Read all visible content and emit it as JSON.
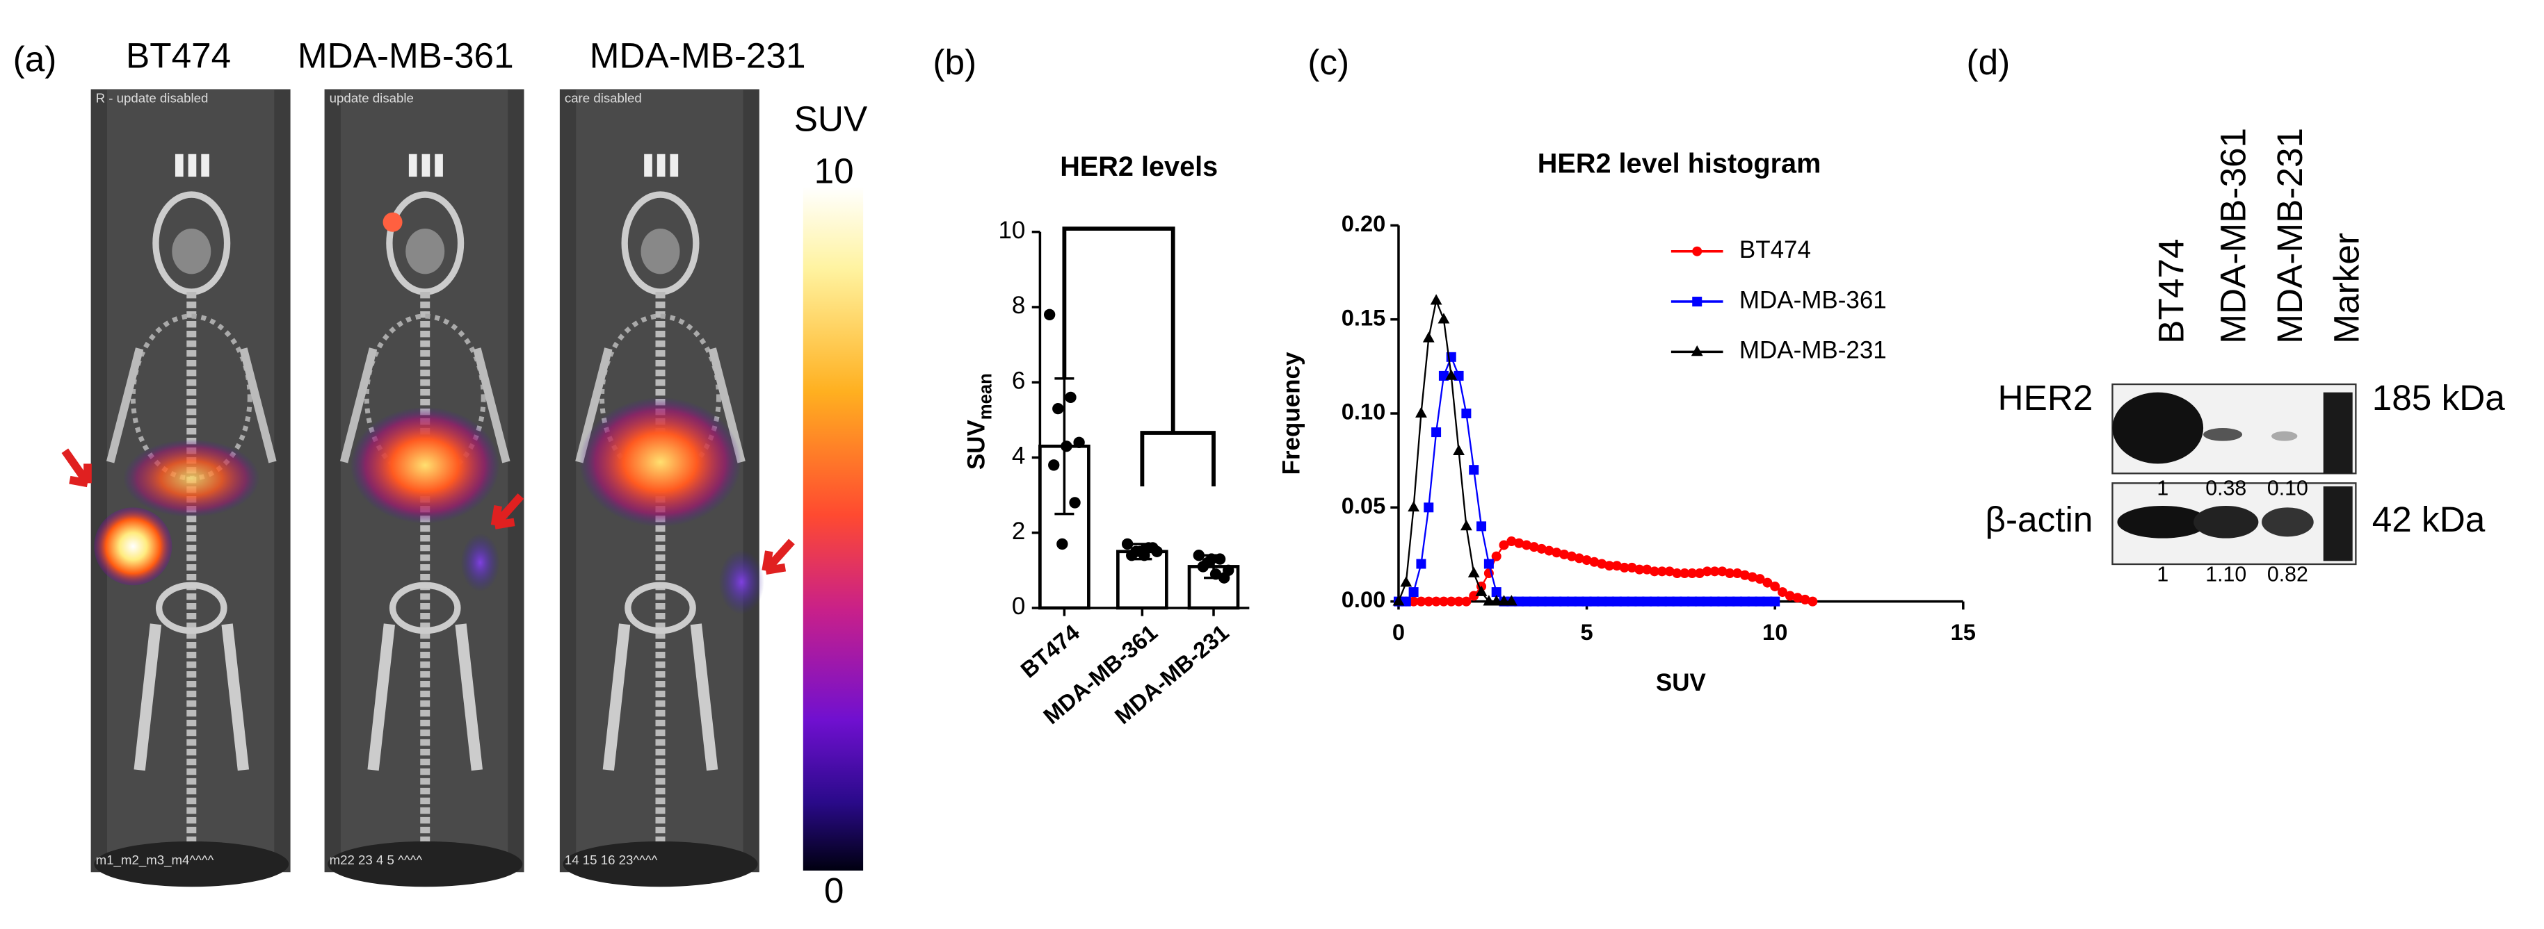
{
  "panel_a": {
    "label": "(a)",
    "columns": [
      "BT474",
      "MDA-MB-361",
      "MDA-MB-231"
    ],
    "overlays": [
      "R - update disabled",
      "update disable",
      "care disabled"
    ],
    "footers": [
      "m1_m2_m3_m4^^^^",
      "m22 23 4 5 ^^^^",
      "14 15 16 23^^^^"
    ],
    "colorbar": {
      "label": "SUV",
      "lim": [
        0,
        10
      ],
      "ticks": [
        0,
        10
      ]
    }
  },
  "panel_b": {
    "label": "(b)"
  },
  "panel_c": {
    "label": "(c)"
  },
  "panel_d": {
    "label": "(d)",
    "lanes": [
      "BT474",
      "MDA-MB-361",
      "MDA-MB-231",
      "Marker"
    ],
    "rows": [
      {
        "name": "HER2",
        "size": "185 kDa",
        "quant": [
          "1",
          "0.38",
          "0.10"
        ]
      },
      {
        "name": "β-actin",
        "size": "42 kDa",
        "quant": [
          "1",
          "1.10",
          "0.82"
        ]
      }
    ]
  },
  "chart_data": [
    {
      "type": "bar",
      "title": "HER2 levels",
      "y_label": "SUV",
      "y_label_sub": "mean",
      "categories": [
        "BT474",
        "MDA-MB-361",
        "MDA-MB-231"
      ],
      "values": [
        4.3,
        1.5,
        1.1
      ],
      "errors": [
        1.8,
        0.2,
        0.3
      ],
      "points": [
        [
          7.8,
          5.6,
          5.3,
          4.4,
          4.3,
          3.8,
          2.8,
          1.7
        ],
        [
          1.7,
          1.6,
          1.5,
          1.5,
          1.4,
          1.4,
          1.6,
          1.5
        ],
        [
          1.4,
          1.3,
          1.2,
          1.0,
          0.9,
          1.1,
          0.8,
          1.3
        ]
      ],
      "color": "#ffffff",
      "ylim": [
        0,
        10
      ],
      "yticks": [
        0,
        2,
        4,
        6,
        8,
        10
      ]
    },
    {
      "type": "line",
      "title": "HER2 level histogram",
      "x_label": "SUV",
      "y_label": "Frequency",
      "xlim": [
        0,
        15
      ],
      "xticks": [
        0,
        5,
        10,
        15
      ],
      "ylim": [
        0,
        0.2
      ],
      "yticks": [
        {
          "value": 0,
          "label": "0.00"
        },
        {
          "value": 0.05,
          "label": "0.05"
        },
        {
          "value": 0.1,
          "label": "0.10"
        },
        {
          "value": 0.15,
          "label": "0.15"
        },
        {
          "value": 0.2,
          "label": "0.20"
        }
      ],
      "x": [
        0,
        0.2,
        0.4,
        0.6,
        0.8,
        1,
        1.2,
        1.4,
        1.6,
        1.8,
        2,
        2.2,
        2.4,
        2.6,
        2.8,
        3,
        3.2,
        3.4,
        3.6,
        3.8,
        4,
        4.2,
        4.4,
        4.6,
        4.8,
        5,
        5.2,
        5.4,
        5.6,
        5.8,
        6,
        6.2,
        6.4,
        6.6,
        6.8,
        7,
        7.2,
        7.4,
        7.6,
        7.8,
        8,
        8.2,
        8.4,
        8.6,
        8.8,
        9,
        9.2,
        9.4,
        9.6,
        9.8,
        10,
        10.2,
        10.4,
        10.6,
        10.8,
        11
      ],
      "series": [
        {
          "name": "BT474",
          "color": "#ff0000",
          "marker": "circle",
          "values": [
            0,
            0,
            0,
            0,
            0,
            0,
            0,
            0,
            0,
            0,
            0.003,
            0.008,
            0.015,
            0.024,
            0.03,
            0.032,
            0.031,
            0.03,
            0.029,
            0.028,
            0.027,
            0.026,
            0.025,
            0.024,
            0.023,
            0.022,
            0.021,
            0.02,
            0.019,
            0.019,
            0.018,
            0.018,
            0.017,
            0.017,
            0.016,
            0.016,
            0.016,
            0.015,
            0.015,
            0.015,
            0.015,
            0.016,
            0.016,
            0.016,
            0.015,
            0.015,
            0.014,
            0.013,
            0.012,
            0.01,
            0.008,
            0.005,
            0.003,
            0.002,
            0.001,
            0
          ]
        },
        {
          "name": "MDA-MB-361",
          "color": "#0000ff",
          "marker": "square",
          "values": [
            0,
            0,
            0.005,
            0.02,
            0.05,
            0.09,
            0.12,
            0.13,
            0.12,
            0.1,
            0.07,
            0.04,
            0.02,
            0.005,
            0,
            0,
            0,
            0,
            0,
            0,
            0,
            0,
            0,
            0,
            0,
            0,
            0,
            0,
            0,
            0,
            0,
            0,
            0,
            0,
            0,
            0,
            0,
            0,
            0,
            0,
            0,
            0,
            0,
            0,
            0,
            0,
            0,
            0,
            0,
            0,
            0,
            null,
            null,
            null,
            null,
            null
          ]
        },
        {
          "name": "MDA-MB-231",
          "color": "#000000",
          "marker": "triangle",
          "values": [
            0,
            0.01,
            0.05,
            0.1,
            0.14,
            0.16,
            0.15,
            0.12,
            0.08,
            0.04,
            0.015,
            0.005,
            0,
            0,
            0,
            0,
            null,
            null,
            null,
            null,
            null,
            null,
            null,
            null,
            null,
            null,
            null,
            null,
            null,
            null,
            null,
            null,
            null,
            null,
            null,
            null,
            null,
            null,
            null,
            null,
            null,
            null,
            null,
            null,
            null,
            null,
            null,
            null,
            null,
            null,
            null,
            null,
            null,
            null,
            null,
            null
          ]
        }
      ]
    }
  ]
}
